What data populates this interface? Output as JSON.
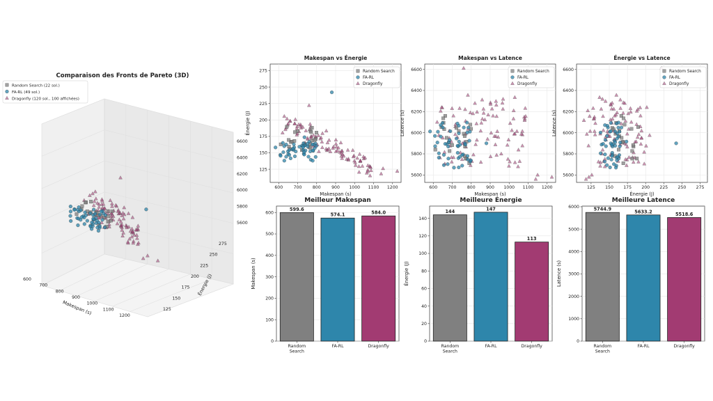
{
  "chart_data": [
    {
      "type": "scatter3d",
      "title": "Comparaison des Fronts de Pareto (3D)",
      "xlabel": "Makespan (s)",
      "ylabel": "Énergie (J)",
      "zlabel": "",
      "xticks": [
        "600",
        "700",
        "800",
        "900",
        "1000",
        "1100",
        "1200"
      ],
      "yticks": [
        "125",
        "150",
        "175",
        "200",
        "225",
        "250",
        "275"
      ],
      "zticks": [
        "5600",
        "5800",
        "6000",
        "6200",
        "6400",
        "6600"
      ],
      "xlim": [
        560,
        1240
      ],
      "ylim": [
        110,
        280
      ],
      "zlim": [
        5560,
        6640
      ],
      "legend_position": "top-left",
      "series": [
        {
          "name": "Random Search (22 sol.)",
          "marker": "square",
          "color": "#808080"
        },
        {
          "name": "FA-RL (49 sol.)",
          "marker": "circle",
          "color": "#2e86ab"
        },
        {
          "name": "Dragonfly (120 sol., 100 affichées)",
          "marker": "triangle",
          "color": "#a23b72"
        }
      ]
    },
    {
      "type": "scatter",
      "title": "Makespan vs Énergie",
      "xlabel": "Makespan (s)",
      "ylabel": "Énergie (J)",
      "xlim": [
        555,
        1245
      ],
      "ylim": [
        105,
        285
      ],
      "xticks": [
        600,
        700,
        800,
        900,
        1000,
        1100,
        1200
      ],
      "yticks": [
        125,
        150,
        175,
        200,
        225,
        250,
        275
      ],
      "grid": true,
      "legend_position": "top-right",
      "series_names": [
        "Random Search",
        "FA-RL",
        "Dragonfly"
      ]
    },
    {
      "type": "scatter",
      "title": "Makespan vs Latence",
      "xlabel": "Makespan (s)",
      "ylabel": "Latence (s)",
      "xlim": [
        555,
        1245
      ],
      "ylim": [
        5530,
        6650
      ],
      "xticks": [
        600,
        700,
        800,
        900,
        1000,
        1100,
        1200
      ],
      "yticks": [
        5600,
        5800,
        6000,
        6200,
        6400,
        6600
      ],
      "grid": true,
      "legend_position": "top-right",
      "series_names": [
        "Random Search",
        "FA-RL",
        "Dragonfly"
      ]
    },
    {
      "type": "scatter",
      "title": "Énergie vs Latence",
      "xlabel": "Énergie (J)",
      "ylabel": "Latence (s)",
      "xlim": [
        105,
        285
      ],
      "ylim": [
        5530,
        6650
      ],
      "xticks": [
        125,
        150,
        175,
        200,
        225,
        250,
        275
      ],
      "yticks": [
        5600,
        5800,
        6000,
        6200,
        6400,
        6600
      ],
      "grid": true,
      "legend_position": "top-right",
      "series_names": [
        "Random Search",
        "FA-RL",
        "Dragonfly"
      ]
    },
    {
      "type": "bar",
      "title": "Meilleur Makespan",
      "ylabel": "Makespan (s)",
      "categories": [
        "Random\nSearch",
        "FA-RL",
        "Dragonfly"
      ],
      "values": [
        599.6,
        574.1,
        584.0
      ],
      "value_labels": [
        "599.6",
        "574.1",
        "584.0"
      ],
      "ylim": [
        0,
        630
      ],
      "yticks": [
        0,
        100,
        200,
        300,
        400,
        500,
        600
      ]
    },
    {
      "type": "bar",
      "title": "Meilleure Énergie",
      "ylabel": "Énergie (J)",
      "categories": [
        "Random\nSearch",
        "FA-RL",
        "Dragonfly"
      ],
      "values": [
        144,
        147,
        113
      ],
      "value_labels": [
        "144",
        "147",
        "113"
      ],
      "ylim": [
        0,
        154
      ],
      "yticks": [
        0,
        20,
        40,
        60,
        80,
        100,
        120,
        140
      ]
    },
    {
      "type": "bar",
      "title": "Meilleure Latence",
      "ylabel": "Latence (s)",
      "categories": [
        "Random\nSearch",
        "FA-RL",
        "Dragonfly"
      ],
      "values": [
        5744.9,
        5633.2,
        5518.6
      ],
      "value_labels": [
        "5744.9",
        "5633.2",
        "5518.6"
      ],
      "ylim": [
        0,
        6030
      ],
      "yticks": [
        0,
        1000,
        2000,
        3000,
        4000,
        5000,
        6000
      ]
    }
  ],
  "colors": {
    "random": "#808080",
    "farl": "#2e86ab",
    "dragonfly": "#a23b72"
  }
}
